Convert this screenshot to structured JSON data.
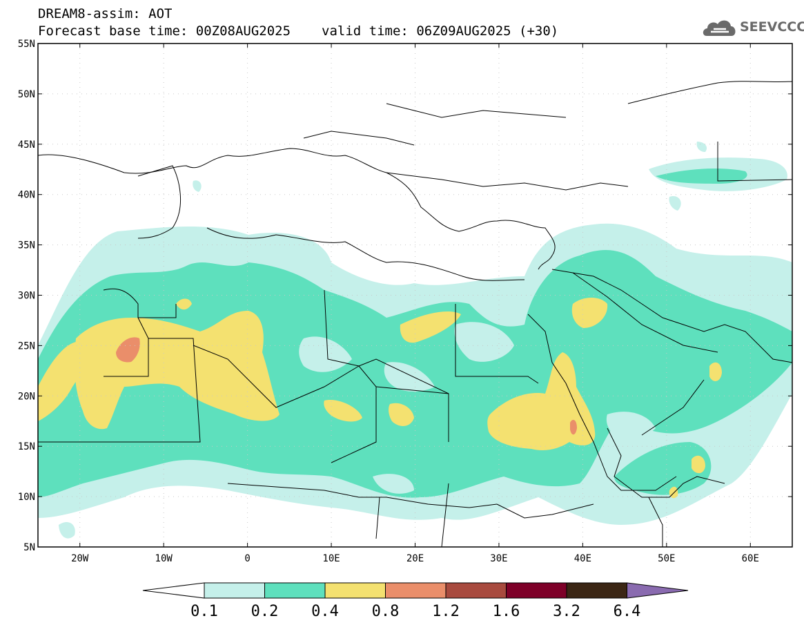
{
  "header": {
    "model_title": "DREAM8-assim: AOT",
    "base_time": "Forecast base time: 00Z08AUG2025",
    "valid_time": "valid time: 06Z09AUG2025 (+30)"
  },
  "logo": {
    "text": "SEEVCCC",
    "icon": "cloud-icon",
    "color": "#6a6a6a"
  },
  "map": {
    "lat_labels": [
      "55N",
      "50N",
      "45N",
      "40N",
      "35N",
      "30N",
      "25N",
      "20N",
      "15N",
      "10N",
      "5N"
    ],
    "lon_labels": [
      "20W",
      "10W",
      "0",
      "10E",
      "20E",
      "30E",
      "40E",
      "50E",
      "60E"
    ],
    "lat_range": [
      5,
      55
    ],
    "lon_range": [
      -25,
      65
    ],
    "grid": "dotted"
  },
  "colorbar": {
    "labels": [
      "0.1",
      "0.2",
      "0.4",
      "0.8",
      "1.2",
      "1.6",
      "3.2",
      "6.4"
    ],
    "colors": [
      "#ffffff",
      "#c5f0ea",
      "#5ee0bd",
      "#f4e170",
      "#ea8e6a",
      "#a84a3e",
      "#7e0028",
      "#3b2614",
      "#8a6bb0"
    ]
  }
}
